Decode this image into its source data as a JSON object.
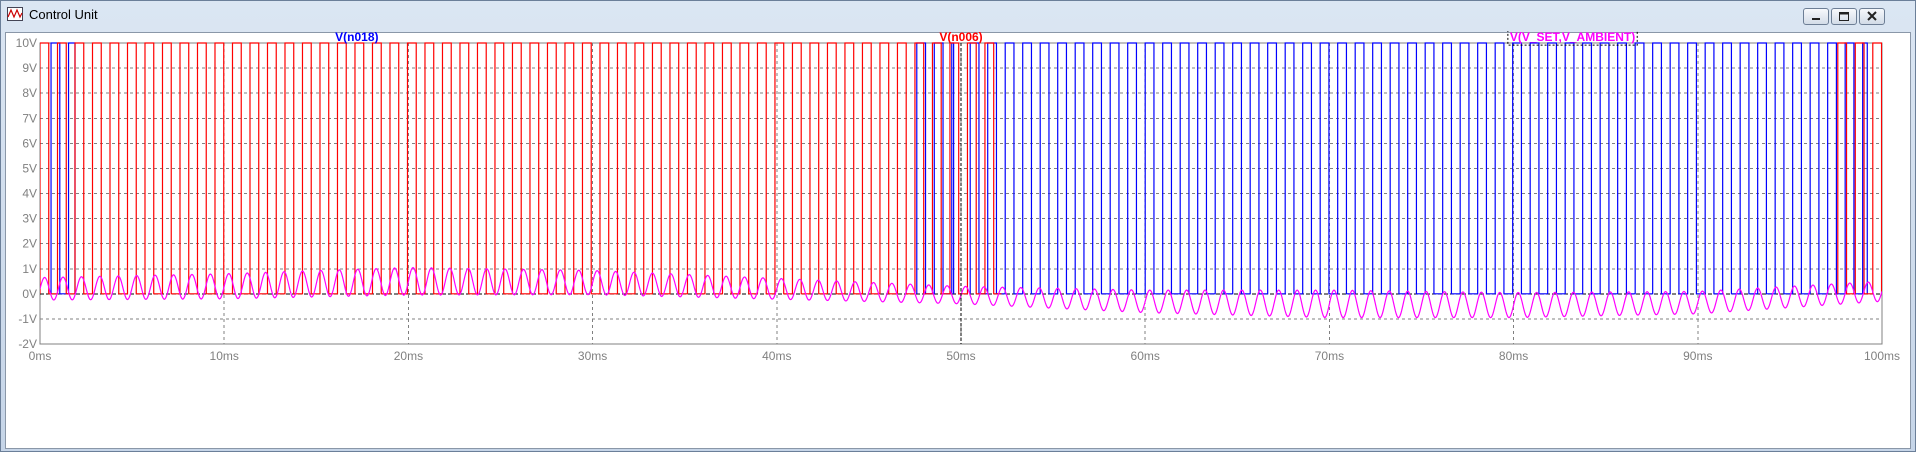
{
  "window": {
    "title": "Control Unit",
    "icon": "waveform-viewer-icon"
  },
  "controls": {
    "minimize": "minimize-icon",
    "maximize": "maximize-icon",
    "close": "close-icon"
  },
  "chart_data": {
    "type": "line",
    "title": "",
    "xlabel": "",
    "ylabel": "",
    "xlim": [
      0,
      100
    ],
    "ylim": [
      -2,
      10
    ],
    "x_unit": "ms",
    "y_unit": "V",
    "grid": true,
    "y_ticks": [
      "10V",
      "9V",
      "8V",
      "7V",
      "6V",
      "5V",
      "4V",
      "3V",
      "2V",
      "1V",
      "0V",
      "-1V",
      "-2V"
    ],
    "x_ticks": [
      "0ms",
      "10ms",
      "20ms",
      "30ms",
      "40ms",
      "50ms",
      "60ms",
      "70ms",
      "80ms",
      "90ms",
      "100ms"
    ],
    "series": [
      {
        "name": "V(n018)",
        "color": "#0000ff",
        "kind": "pwm",
        "low": 0,
        "high": 10,
        "active_ranges_ms": [
          [
            0.6,
            1.9
          ],
          [
            47.6,
            49.6
          ],
          [
            50.5,
            99.2
          ]
        ],
        "period_ms": 0.95,
        "duty": 0.5
      },
      {
        "name": "V(n006)",
        "color": "#ff0000",
        "kind": "pwm",
        "low": 0,
        "high": 10,
        "active_ranges_ms": [
          [
            0,
            52.2
          ],
          [
            97.6,
            100
          ]
        ],
        "period_ms": 0.95,
        "duty": 0.5
      },
      {
        "name": "V(V_SET,V_AMBIENT)",
        "color": "#ff00ff",
        "kind": "sine",
        "period_ms": 1.0,
        "center_points": [
          [
            0,
            0.2
          ],
          [
            10,
            0.3
          ],
          [
            20,
            0.5
          ],
          [
            30,
            0.45
          ],
          [
            40,
            0.2
          ],
          [
            50,
            -0.05
          ],
          [
            60,
            -0.3
          ],
          [
            70,
            -0.4
          ],
          [
            80,
            -0.45
          ],
          [
            90,
            -0.35
          ],
          [
            100,
            0.1
          ]
        ],
        "amplitude_points": [
          [
            0,
            0.45
          ],
          [
            20,
            0.55
          ],
          [
            50,
            0.35
          ],
          [
            70,
            0.55
          ],
          [
            100,
            0.4
          ]
        ]
      }
    ],
    "cursor_x_ms": 50
  }
}
